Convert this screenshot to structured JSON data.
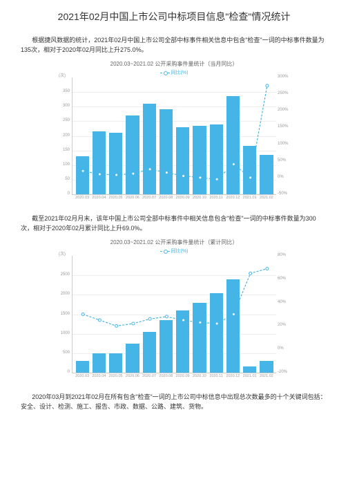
{
  "title": "2021年02月中国上市公司中标项目信息\"检查\"情况统计",
  "para1": "根据捷风数据的统计，2021年02月中国上市公司全部中标事件相关信息中包含\"检查\"一词的中标事件数量为135次，相对于2020年02月同比上升275.0%。",
  "para2": "截至2021年02月月末，该年中国上市公司全部中标事件中相关信息包含\"检查\"一词的中标事件数量为300次，相对于2020年02月累计同比上升69.0%。",
  "para3": "2020年03月到2021年02月在所有包含\"检查\"一词的上市公司中标信息中出现总次数最多的十个关键词包括：安全、设计、检测、施工、报告、市政、数据、公路、建筑、货物。",
  "chart1": {
    "title": "2020.03~2021.02 公开采购事件量统计（当月同比）",
    "legend": "同比(%)",
    "y_unit": "(次)",
    "categories": [
      "2020.03",
      "2020.04",
      "2020.05",
      "2020.06",
      "2020.07",
      "2020.08",
      "2020.09",
      "2020.10",
      "2020.11",
      "2020.12",
      "2021.01",
      "2021.02"
    ],
    "bars": [
      130,
      215,
      210,
      270,
      310,
      290,
      230,
      235,
      240,
      335,
      165,
      135
    ],
    "bar_max": 400,
    "left_ticks": [
      0,
      50,
      100,
      150,
      200,
      250,
      300,
      350
    ],
    "line": [
      20,
      10,
      8,
      12,
      25,
      15,
      5,
      0,
      -5,
      40,
      0,
      275
    ],
    "line_min": -50,
    "line_max": 300,
    "right_ticks": [
      -50,
      0,
      50,
      100,
      150,
      200,
      250,
      300
    ],
    "bar_color": "#44b5e6",
    "grid_color": "#eeeeee",
    "line_color": "#44b5e6"
  },
  "chart2": {
    "title": "2020.03~2021.02 公开采购事件量统计（累计同比）",
    "legend": "同比(%)",
    "y_unit": "(次)",
    "categories": [
      "2020.03",
      "2020.04",
      "2020.05",
      "2020.06",
      "2020.07",
      "2020.08",
      "2020.09",
      "2020.10",
      "2020.11",
      "2020.12",
      "2021.01",
      "2021.02"
    ],
    "bars": [
      300,
      500,
      500,
      750,
      1050,
      1350,
      1600,
      1800,
      2050,
      2400,
      165,
      300
    ],
    "bar_max": 3000,
    "left_ticks": [
      0,
      500,
      1000,
      1500,
      2000,
      2500
    ],
    "line": [
      30,
      25,
      20,
      22,
      26,
      28,
      25,
      23,
      22,
      30,
      65,
      69
    ],
    "line_min": -20,
    "line_max": 80,
    "right_ticks": [
      -20,
      0,
      20,
      40,
      60,
      80
    ],
    "bar_color": "#44b5e6",
    "grid_color": "#eeeeee",
    "line_color": "#44b5e6"
  }
}
